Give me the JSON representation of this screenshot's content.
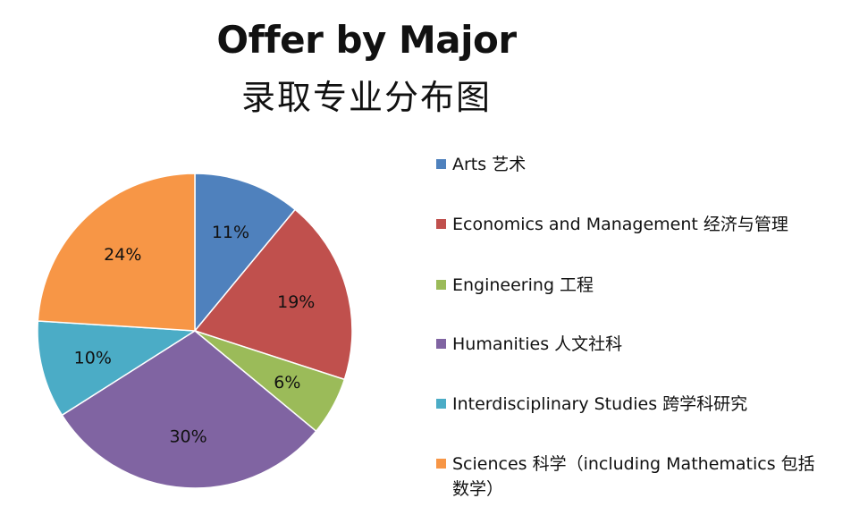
{
  "chart_data": {
    "type": "pie",
    "title": "Offer by Major",
    "subtitle": "录取专业分布图",
    "slices": [
      {
        "label": "Arts 艺术",
        "value": 11,
        "display": "11%",
        "color": "#4F81BD"
      },
      {
        "label": "Economics and Management 经济与管理",
        "value": 19,
        "display": "19%",
        "color": "#C0504D"
      },
      {
        "label": "Engineering 工程",
        "value": 6,
        "display": "6%",
        "color": "#9BBB59"
      },
      {
        "label": "Humanities 人文社科",
        "value": 30,
        "display": "30%",
        "color": "#8064A2"
      },
      {
        "label": "Interdisciplinary Studies 跨学科研究",
        "value": 10,
        "display": "10%",
        "color": "#4BACC6"
      },
      {
        "label": "Sciences 科学（including Mathematics 包括数学）",
        "value": 24,
        "display": "24%",
        "color": "#F79646"
      }
    ],
    "legend_position": "right"
  }
}
